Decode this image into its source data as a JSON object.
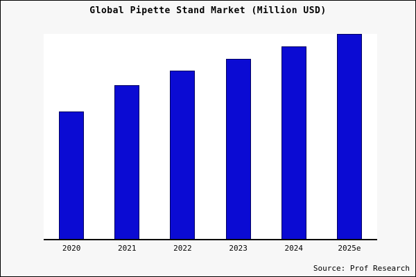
{
  "title": "Global Pipette Stand Market (Million USD)",
  "source": "Source: Prof Research",
  "chart_data": {
    "type": "bar",
    "title": "Global Pipette Stand Market (Million USD)",
    "categories": [
      "2020",
      "2021",
      "2022",
      "2023",
      "2024",
      "2025e"
    ],
    "values": [
      62,
      75,
      82,
      88,
      94,
      100
    ],
    "xlabel": "",
    "ylabel": "",
    "ylim": [
      0,
      100
    ],
    "grid": false,
    "legend": "none",
    "bar_color": "#0b0bd3",
    "bar_edge_color": "#000060",
    "figure_background": "#f7f7f7",
    "plot_background": "#ffffff",
    "note": "no y-axis tick labels shown; values are relative estimates with tallest bar = 100"
  }
}
